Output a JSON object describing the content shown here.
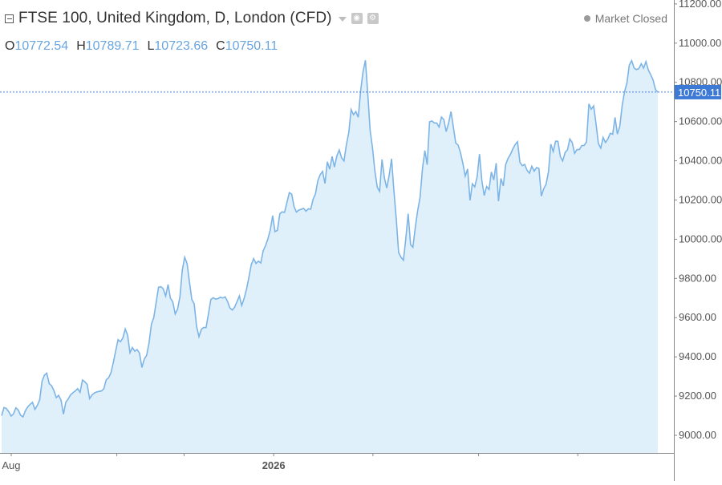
{
  "header": {
    "title": "FTSE 100, United Kingdom, D, London (CFD)",
    "ohlc": [
      {
        "key": "O",
        "value": "10772.54"
      },
      {
        "key": "H",
        "value": "10789.71"
      },
      {
        "key": "L",
        "value": "10723.66"
      },
      {
        "key": "C",
        "value": "10750.11"
      }
    ],
    "status": "Market Closed"
  },
  "colors": {
    "line": "#7db4e6",
    "fill": "#e0f0fb",
    "label_bg": "#3d7ad6",
    "grid": "#888888"
  },
  "chart_data": {
    "type": "area",
    "title": "FTSE 100, United Kingdom, D, London (CFD)",
    "ylim": [
      8910,
      11220
    ],
    "y_ticks": [
      9000,
      9200,
      9400,
      9600,
      9800,
      10000,
      10200,
      10400,
      10600,
      10800,
      11000,
      11200
    ],
    "y_tick_labels": [
      "9000.00",
      "9200.00",
      "9400.00",
      "9600.00",
      "9800.00",
      "10000.00",
      "10200.00",
      "10400.00",
      "10600.00",
      "10800.00",
      "11000.00",
      "11200.00"
    ],
    "x_range": [
      0,
      205
    ],
    "x_labels": [
      {
        "x": 3,
        "label": "Aug"
      },
      {
        "x": 85,
        "label": "2026"
      }
    ],
    "x_minor_ticks": [
      36,
      57,
      116,
      149,
      180
    ],
    "last_value": 10750.11,
    "last_value_label": "10750.11",
    "values": [
      9100,
      9142,
      9137,
      9120,
      9098,
      9109,
      9140,
      9129,
      9102,
      9094,
      9125,
      9145,
      9158,
      9168,
      9132,
      9152,
      9180,
      9275,
      9306,
      9317,
      9264,
      9253,
      9228,
      9192,
      9204,
      9179,
      9108,
      9168,
      9185,
      9206,
      9217,
      9226,
      9238,
      9219,
      9282,
      9273,
      9259,
      9187,
      9205,
      9216,
      9221,
      9224,
      9226,
      9237,
      9283,
      9293,
      9319,
      9372,
      9432,
      9488,
      9477,
      9497,
      9542,
      9510,
      9421,
      9448,
      9429,
      9437,
      9419,
      9346,
      9388,
      9408,
      9471,
      9566,
      9601,
      9676,
      9755,
      9758,
      9747,
      9710,
      9769,
      9700,
      9680,
      9619,
      9643,
      9706,
      9841,
      9908,
      9876,
      9784,
      9693,
      9670,
      9557,
      9503,
      9540,
      9550,
      9549,
      9618,
      9692,
      9702,
      9694,
      9697,
      9704,
      9700,
      9706,
      9683,
      9650,
      9639,
      9653,
      9681,
      9711,
      9662,
      9698,
      9745,
      9805,
      9870,
      9901,
      9876,
      9888,
      9879,
      9940,
      9967,
      10001,
      10048,
      10120,
      10039,
      10045,
      10130,
      10140,
      10137,
      10188,
      10237,
      10230,
      10167,
      10138,
      10149,
      10152,
      10158,
      10143,
      10155,
      10153,
      10204,
      10231,
      10299,
      10329,
      10346,
      10284,
      10395,
      10357,
      10422,
      10368,
      10425,
      10455,
      10415,
      10399,
      10480,
      10543,
      10661,
      10635,
      10651,
      10622,
      10754,
      10853,
      10913,
      10744,
      10555,
      10467,
      10348,
      10265,
      10244,
      10407,
      10312,
      10261,
      10326,
      10410,
      10248,
      10102,
      9932,
      9908,
      9893,
      10001,
      10130,
      9972,
      9959,
      10061,
      10147,
      10213,
      10358,
      10452,
      10380,
      10599,
      10603,
      10593,
      10593,
      10572,
      10623,
      10609,
      10549,
      10593,
      10651,
      10573,
      10490,
      10481,
      10442,
      10386,
      10322,
      10358,
      10198,
      10283,
      10267,
      10319,
      10434,
      10297,
      10223,
      10269,
      10254,
      10343,
      10302,
      10388,
      10194,
      10310,
      10272,
      10380,
      10412,
      10432,
      10460,
      10483,
      10497,
      10392,
      10375,
      10382,
      10351,
      10337,
      10372,
      10347,
      10365,
      10361,
      10220,
      10257,
      10281,
      10344,
      10485,
      10447,
      10500,
      10499,
      10421,
      10399,
      10442,
      10456,
      10511,
      10493,
      10438,
      10457,
      10457,
      10478,
      10478,
      10496,
      10690,
      10663,
      10680,
      10591,
      10488,
      10465,
      10519,
      10493,
      10512,
      10540,
      10535,
      10621,
      10536,
      10576,
      10680,
      10752,
      10797,
      10888,
      10911,
      10873,
      10865,
      10870,
      10895,
      10873,
      10906,
      10864,
      10839,
      10812,
      10764,
      10750
    ]
  }
}
